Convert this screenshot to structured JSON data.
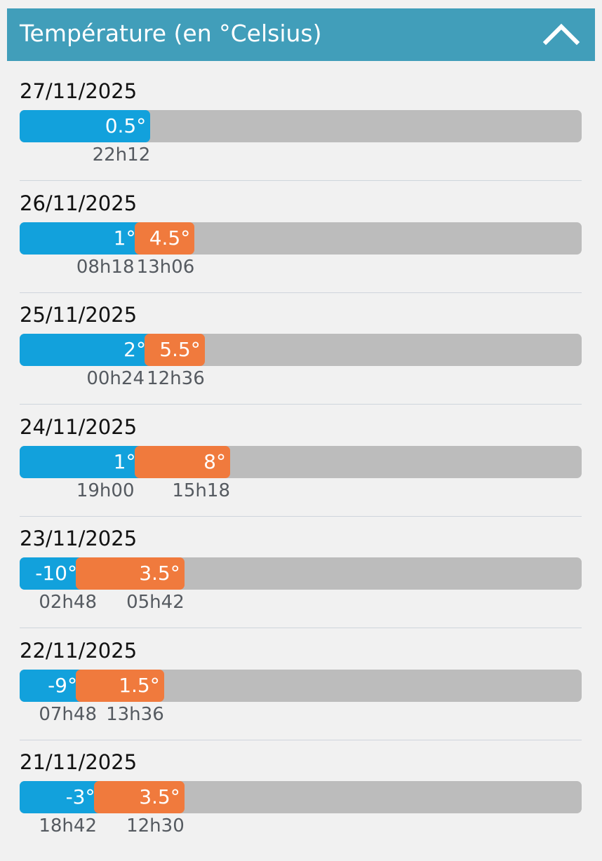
{
  "header": {
    "title": "Température (en °Celsius)",
    "collapse_icon": "chevron-up-icon"
  },
  "colors": {
    "header": "#419eba",
    "min_bar": "#12a1dc",
    "max_bar": "#f07a3d",
    "track": "#bcbcbc",
    "background": "#f1f1f1"
  },
  "days": [
    {
      "date": "27/11/2025",
      "min": {
        "value": 0.5,
        "label": "0.5°",
        "time": "22h12"
      },
      "max": null
    },
    {
      "date": "26/11/2025",
      "min": {
        "value": 1,
        "label": "1°",
        "time": "08h18"
      },
      "max": {
        "value": 4.5,
        "label": "4.5°",
        "time": "13h06"
      }
    },
    {
      "date": "25/11/2025",
      "min": {
        "value": 2,
        "label": "2°",
        "time": "00h24"
      },
      "max": {
        "value": 5.5,
        "label": "5.5°",
        "time": "12h36"
      }
    },
    {
      "date": "24/11/2025",
      "min": {
        "value": 1,
        "label": "1°",
        "time": "19h00"
      },
      "max": {
        "value": 8,
        "label": "8°",
        "time": "15h18"
      }
    },
    {
      "date": "23/11/2025",
      "min": {
        "value": -10,
        "label": "-10°",
        "time": "02h48"
      },
      "max": {
        "value": 3.5,
        "label": "3.5°",
        "time": "05h42"
      }
    },
    {
      "date": "22/11/2025",
      "min": {
        "value": -9,
        "label": "-9°",
        "time": "07h48"
      },
      "max": {
        "value": 1.5,
        "label": "1.5°",
        "time": "13h36"
      }
    },
    {
      "date": "21/11/2025",
      "min": {
        "value": -3,
        "label": "-3°",
        "time": "18h42"
      },
      "max": {
        "value": 3.5,
        "label": "3.5°",
        "time": "12h30"
      }
    }
  ]
}
